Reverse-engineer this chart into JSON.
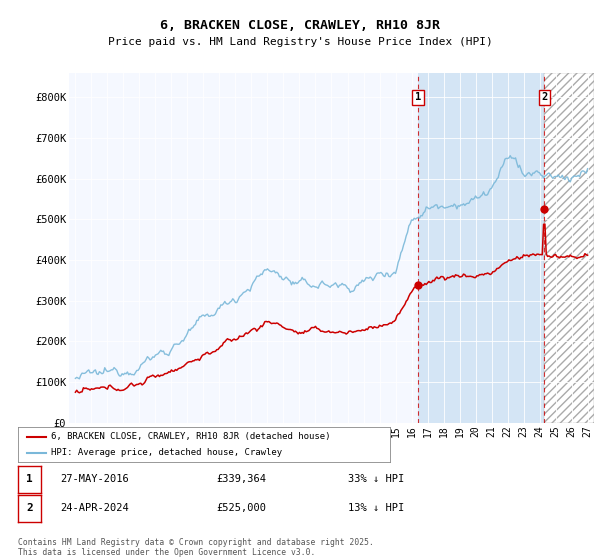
{
  "title": "6, BRACKEN CLOSE, CRAWLEY, RH10 8JR",
  "subtitle": "Price paid vs. HM Land Registry's House Price Index (HPI)",
  "ylabel_ticks": [
    "£0",
    "£100K",
    "£200K",
    "£300K",
    "£400K",
    "£500K",
    "£600K",
    "£700K",
    "£800K"
  ],
  "ytick_vals": [
    0,
    100000,
    200000,
    300000,
    400000,
    500000,
    600000,
    700000,
    800000
  ],
  "ylim": [
    0,
    860000
  ],
  "xlim_start": 1994.6,
  "xlim_end": 2027.4,
  "sale1_date": "27-MAY-2016",
  "sale1_price": 339364,
  "sale1_x": 2016.4,
  "sale1_label": "33% ↓ HPI",
  "sale2_date": "24-APR-2024",
  "sale2_price": 525000,
  "sale2_x": 2024.3,
  "sale2_label": "13% ↓ HPI",
  "hpi_color": "#7ab8d9",
  "price_color": "#cc0000",
  "vline_color": "#cc0000",
  "background_color": "#dce8f5",
  "shade_color": "#dce8f5",
  "hatch_color": "#cccccc",
  "legend_label_price": "6, BRACKEN CLOSE, CRAWLEY, RH10 8JR (detached house)",
  "legend_label_hpi": "HPI: Average price, detached house, Crawley",
  "footer": "Contains HM Land Registry data © Crown copyright and database right 2025.\nThis data is licensed under the Open Government Licence v3.0.",
  "marker1_label": "1",
  "marker2_label": "2"
}
